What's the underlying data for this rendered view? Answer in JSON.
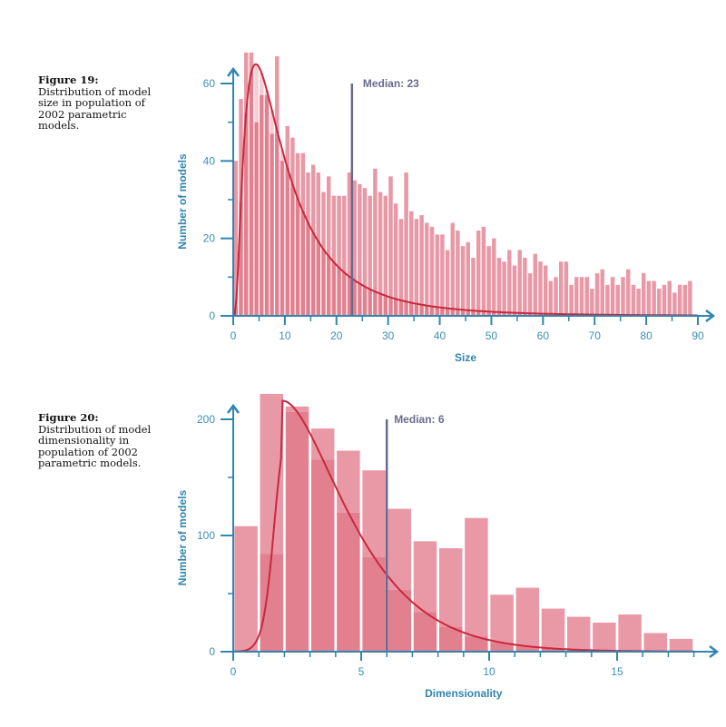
{
  "figures": [
    {
      "label": "Figure 19:",
      "caption": "Distribution of model size in population of 2002 parametric models."
    },
    {
      "label": "Figure 20:",
      "caption": "Distribution of model dimensionality in population of 2002 parametric models."
    }
  ],
  "colors": {
    "axis": "#2f86b0",
    "bar": "#e2808f",
    "bar_light": "#f6cdd4",
    "curve": "#c8283f",
    "median": "#6a6a8e"
  },
  "chart_data": [
    {
      "type": "bar",
      "title": "Distribution of model size",
      "xlabel": "Size",
      "ylabel": "Number of models",
      "xlim": [
        0,
        90
      ],
      "ylim": [
        0,
        60
      ],
      "xticks": [
        0,
        10,
        20,
        30,
        40,
        50,
        60,
        70,
        80,
        90
      ],
      "yticks": [
        0,
        20,
        40,
        60
      ],
      "median": {
        "value": 23,
        "label": "Median: 23"
      },
      "x": [
        1,
        2,
        3,
        4,
        5,
        6,
        7,
        8,
        9,
        10,
        11,
        12,
        13,
        14,
        15,
        16,
        17,
        18,
        19,
        20,
        21,
        22,
        23,
        24,
        25,
        26,
        27,
        28,
        29,
        30,
        31,
        32,
        33,
        34,
        35,
        36,
        37,
        38,
        39,
        40,
        41,
        42,
        43,
        44,
        45,
        46,
        47,
        48,
        49,
        50,
        51,
        52,
        53,
        54,
        55,
        56,
        57,
        58,
        59,
        60,
        61,
        62,
        63,
        64,
        65,
        66,
        67,
        68,
        69,
        70,
        71,
        72,
        73,
        74,
        75,
        76,
        77,
        78,
        79,
        80,
        81,
        82,
        83,
        84,
        85,
        86,
        87,
        88,
        89
      ],
      "values": [
        40,
        56,
        68,
        68,
        50,
        57,
        57,
        47,
        67,
        40,
        49,
        46,
        42,
        42,
        37,
        39,
        37,
        32,
        36,
        31,
        31,
        31,
        37,
        35,
        34,
        33,
        31,
        38,
        32,
        31,
        36,
        29,
        25,
        37,
        27,
        25,
        26,
        24,
        23,
        21,
        21,
        17,
        24,
        22,
        18,
        19,
        15,
        22,
        23,
        18,
        20,
        15,
        14,
        17,
        13,
        17,
        15,
        11,
        16,
        14,
        13,
        9,
        10,
        14,
        14,
        8,
        10,
        10,
        10,
        7,
        11,
        12,
        8,
        10,
        8,
        10,
        12,
        8,
        7,
        11,
        9,
        9,
        7,
        8,
        9,
        6,
        8,
        8,
        9
      ],
      "fit_curve": {
        "type": "lognormal-like",
        "peak_x": 6,
        "peak_y": 65
      }
    },
    {
      "type": "bar",
      "title": "Distribution of model dimensionality",
      "xlabel": "Dimensionality",
      "ylabel": "Number of models",
      "xlim": [
        0,
        18
      ],
      "ylim": [
        0,
        200
      ],
      "xticks": [
        0,
        5,
        10,
        15
      ],
      "yticks": [
        0,
        100,
        200
      ],
      "median": {
        "value": 6,
        "label": "Median: 6"
      },
      "x": [
        1,
        2,
        3,
        4,
        5,
        6,
        7,
        8,
        9,
        10,
        11,
        12,
        13,
        14,
        15,
        16,
        17,
        18
      ],
      "values": [
        108,
        222,
        211,
        192,
        173,
        156,
        123,
        95,
        89,
        115,
        49,
        55,
        37,
        30,
        25,
        32,
        16,
        11
      ],
      "fit_curve": {
        "type": "gamma-like",
        "peak_x": 2.3,
        "peak_y": 216
      }
    }
  ]
}
